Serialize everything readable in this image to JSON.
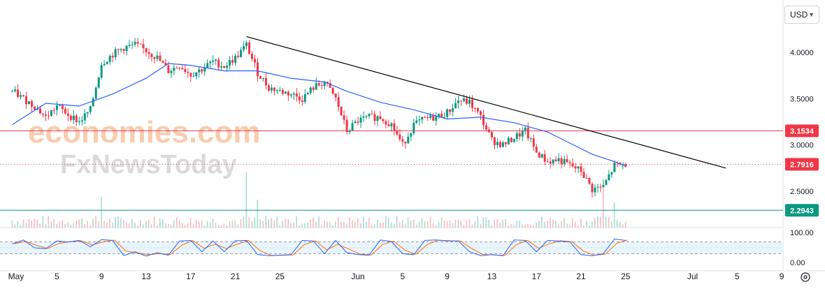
{
  "header": {
    "currency": "USD",
    "currency_icon": "chevron-down-icon"
  },
  "watermark": {
    "line1": "economies.com",
    "line2": "FxNewsToday"
  },
  "colors": {
    "bull": "#089981",
    "bear": "#f23645",
    "ma": "#2962ff",
    "trend": "#000000",
    "resistance": "#f23645",
    "support": "#089981",
    "price": "#f23645",
    "stoch_k": "#2962ff",
    "stoch_d": "#ff6d00",
    "stoch_band": "#e3f2fd"
  },
  "chart_data": {
    "type": "candlestick",
    "currency": "USD",
    "y_ticks": [
      "4.0000",
      "3.5000",
      "3.0000",
      "2.5000"
    ],
    "ylim": [
      2.2,
      4.5
    ],
    "x_ticks": [
      {
        "day": 0,
        "label": "May"
      },
      {
        "day": 4,
        "label": "5"
      },
      {
        "day": 8,
        "label": "9"
      },
      {
        "day": 12,
        "label": "13"
      },
      {
        "day": 16,
        "label": "17"
      },
      {
        "day": 20,
        "label": "21"
      },
      {
        "day": 24,
        "label": "25"
      },
      {
        "day": 31,
        "label": "Jun"
      },
      {
        "day": 35,
        "label": "5"
      },
      {
        "day": 39,
        "label": "9"
      },
      {
        "day": 43,
        "label": "13"
      },
      {
        "day": 47,
        "label": "17"
      },
      {
        "day": 51,
        "label": "21"
      },
      {
        "day": 55,
        "label": "25"
      },
      {
        "day": 61,
        "label": "Jul"
      },
      {
        "day": 65,
        "label": "5"
      },
      {
        "day": 69,
        "label": "9"
      }
    ],
    "price_path": [
      [
        0,
        3.58
      ],
      [
        1,
        3.5
      ],
      [
        2,
        3.42
      ],
      [
        3,
        3.3
      ],
      [
        4,
        3.42
      ],
      [
        5,
        3.33
      ],
      [
        6,
        3.25
      ],
      [
        7,
        3.38
      ],
      [
        8,
        3.88
      ],
      [
        9,
        3.98
      ],
      [
        10,
        4.05
      ],
      [
        11,
        4.08
      ],
      [
        12,
        4.02
      ],
      [
        13,
        3.94
      ],
      [
        14,
        3.8
      ],
      [
        15,
        3.86
      ],
      [
        16,
        3.76
      ],
      [
        17,
        3.82
      ],
      [
        18,
        3.9
      ],
      [
        19,
        3.85
      ],
      [
        20,
        3.94
      ],
      [
        21,
        4.08
      ],
      [
        22,
        3.78
      ],
      [
        23,
        3.62
      ],
      [
        24,
        3.58
      ],
      [
        25,
        3.55
      ],
      [
        26,
        3.5
      ],
      [
        27,
        3.62
      ],
      [
        28,
        3.68
      ],
      [
        29,
        3.5
      ],
      [
        30,
        3.15
      ],
      [
        31,
        3.26
      ],
      [
        32,
        3.3
      ],
      [
        33,
        3.3
      ],
      [
        34,
        3.22
      ],
      [
        35,
        3.0
      ],
      [
        36,
        3.22
      ],
      [
        37,
        3.28
      ],
      [
        38,
        3.3
      ],
      [
        39,
        3.35
      ],
      [
        40,
        3.48
      ],
      [
        41,
        3.46
      ],
      [
        42,
        3.3
      ],
      [
        43,
        3.05
      ],
      [
        44,
        3.0
      ],
      [
        45,
        3.08
      ],
      [
        46,
        3.15
      ],
      [
        47,
        2.92
      ],
      [
        48,
        2.82
      ],
      [
        49,
        2.84
      ],
      [
        50,
        2.78
      ],
      [
        51,
        2.72
      ],
      [
        52,
        2.52
      ],
      [
        53,
        2.55
      ],
      [
        54,
        2.78
      ],
      [
        55,
        2.79
      ]
    ],
    "moving_average": [
      [
        0,
        3.22
      ],
      [
        3,
        3.45
      ],
      [
        6,
        3.42
      ],
      [
        9,
        3.55
      ],
      [
        12,
        3.72
      ],
      [
        14,
        3.88
      ],
      [
        16,
        3.86
      ],
      [
        19,
        3.8
      ],
      [
        22,
        3.8
      ],
      [
        25,
        3.72
      ],
      [
        28,
        3.68
      ],
      [
        30,
        3.58
      ],
      [
        33,
        3.46
      ],
      [
        36,
        3.38
      ],
      [
        39,
        3.28
      ],
      [
        42,
        3.3
      ],
      [
        45,
        3.24
      ],
      [
        48,
        3.14
      ],
      [
        50,
        3.02
      ],
      [
        52,
        2.9
      ],
      [
        54,
        2.82
      ],
      [
        55,
        2.77
      ]
    ],
    "trendline": {
      "start": [
        21,
        4.17
      ],
      "end": [
        64,
        2.75
      ]
    },
    "horizontal_lines": [
      {
        "name": "resistance",
        "value": 3.1534,
        "label": "3.1534"
      },
      {
        "name": "last-price",
        "value": 2.7916,
        "label": "2.7916"
      },
      {
        "name": "support",
        "value": 2.2943,
        "label": "2.2943"
      }
    ],
    "volume_spikes": [
      {
        "day": 8,
        "value": 0.55
      },
      {
        "day": 21,
        "value": 1.0
      },
      {
        "day": 22,
        "value": 0.5
      },
      {
        "day": 53,
        "value": 0.75
      },
      {
        "day": 54,
        "value": 0.45
      }
    ],
    "stochastic": {
      "ticks": [
        "100.00",
        "0.00"
      ],
      "upper_band": 80,
      "lower_band": 20,
      "range": [
        0,
        100
      ],
      "pivots": [
        [
          0,
          70
        ],
        [
          1,
          90
        ],
        [
          2,
          50
        ],
        [
          3,
          45
        ],
        [
          4,
          85
        ],
        [
          5,
          80
        ],
        [
          6,
          88
        ],
        [
          7,
          55
        ],
        [
          8,
          92
        ],
        [
          9,
          88
        ],
        [
          10,
          10
        ],
        [
          11,
          30
        ],
        [
          12,
          8
        ],
        [
          13,
          25
        ],
        [
          14,
          12
        ],
        [
          15,
          85
        ],
        [
          16,
          88
        ],
        [
          17,
          30
        ],
        [
          18,
          85
        ],
        [
          19,
          30
        ],
        [
          20,
          86
        ],
        [
          21,
          88
        ],
        [
          22,
          15
        ],
        [
          23,
          10
        ],
        [
          24,
          12
        ],
        [
          25,
          15
        ],
        [
          26,
          88
        ],
        [
          27,
          85
        ],
        [
          28,
          20
        ],
        [
          29,
          88
        ],
        [
          30,
          25
        ],
        [
          31,
          15
        ],
        [
          32,
          12
        ],
        [
          33,
          90
        ],
        [
          34,
          82
        ],
        [
          35,
          20
        ],
        [
          36,
          15
        ],
        [
          37,
          88
        ],
        [
          38,
          90
        ],
        [
          39,
          85
        ],
        [
          40,
          85
        ],
        [
          41,
          30
        ],
        [
          42,
          10
        ],
        [
          43,
          15
        ],
        [
          44,
          10
        ],
        [
          45,
          90
        ],
        [
          46,
          88
        ],
        [
          47,
          30
        ],
        [
          48,
          88
        ],
        [
          49,
          85
        ],
        [
          50,
          80
        ],
        [
          51,
          15
        ],
        [
          52,
          10
        ],
        [
          53,
          20
        ],
        [
          54,
          95
        ],
        [
          55,
          88
        ]
      ]
    }
  }
}
